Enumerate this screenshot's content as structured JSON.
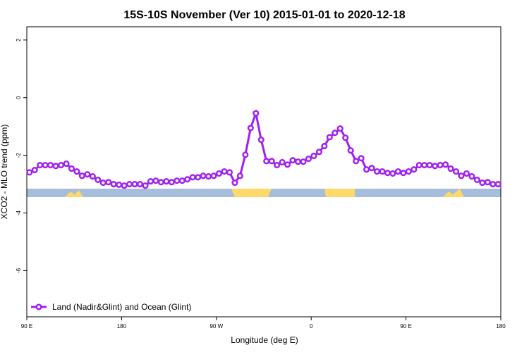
{
  "chart_data": {
    "type": "line",
    "title": "15S-10S November (Ver 10)   2015-01-01 to 2020-12-18",
    "x_label": "Longitude (deg E)",
    "y_label": "XCO2 - MLO trend (ppm)",
    "x": [
      92.5,
      97.5,
      102.5,
      107.5,
      112.5,
      117.5,
      122.5,
      127.5,
      132.5,
      137.5,
      142.5,
      147.5,
      152.5,
      157.5,
      162.5,
      167.5,
      172.5,
      177.5,
      182.5,
      187.5,
      192.5,
      197.5,
      202.5,
      207.5,
      212.5,
      217.5,
      222.5,
      227.5,
      232.5,
      237.5,
      242.5,
      247.5,
      252.5,
      257.5,
      262.5,
      267.5,
      272.5,
      277.5,
      282.5,
      287.5,
      292.5,
      297.5,
      302.5,
      307.5,
      312.5,
      317.5,
      322.5,
      327.5,
      332.5,
      337.5,
      342.5,
      347.5,
      352.5,
      357.5,
      362.5,
      367.5,
      372.5,
      377.5,
      382.5,
      387.5,
      392.5,
      397.5,
      402.5,
      407.5,
      412.5,
      417.5,
      422.5,
      427.5,
      432.5,
      437.5,
      442.5,
      447.5,
      452.5,
      457.5,
      462.5,
      467.5,
      472.5,
      477.5,
      482.5,
      487.5,
      492.5,
      497.5,
      502.5,
      507.5,
      512.5,
      517.5,
      522.5,
      527.5,
      532.5,
      537.5
    ],
    "series": [
      {
        "name": "Land (Nadir&Glint) and Ocean (Glint)",
        "color": "#a020f0",
        "values": [
          -2.59,
          -2.51,
          -2.34,
          -2.34,
          -2.34,
          -2.37,
          -2.34,
          -2.29,
          -2.46,
          -2.56,
          -2.71,
          -2.66,
          -2.73,
          -2.85,
          -2.95,
          -2.93,
          -3.0,
          -3.02,
          -3.05,
          -3.0,
          -3.0,
          -3.0,
          -3.05,
          -2.9,
          -2.88,
          -2.93,
          -2.9,
          -2.93,
          -2.88,
          -2.88,
          -2.83,
          -2.76,
          -2.76,
          -2.71,
          -2.73,
          -2.71,
          -2.63,
          -2.56,
          -2.59,
          -2.95,
          -2.71,
          -1.98,
          -1.05,
          -0.54,
          -1.46,
          -2.2,
          -2.2,
          -2.34,
          -2.24,
          -2.32,
          -2.17,
          -2.22,
          -2.22,
          -2.12,
          -2.02,
          -1.88,
          -1.68,
          -1.37,
          -1.22,
          -1.07,
          -1.39,
          -1.83,
          -2.2,
          -2.1,
          -2.49,
          -2.44,
          -2.56,
          -2.56,
          -2.61,
          -2.63,
          -2.56,
          -2.61,
          -2.56,
          -2.49,
          -2.34,
          -2.34,
          -2.34,
          -2.37,
          -2.34,
          -2.32,
          -2.46,
          -2.56,
          -2.71,
          -2.63,
          -2.73,
          -2.85,
          -2.95,
          -2.93,
          -3.0,
          -3.0
        ]
      }
    ],
    "xlim": [
      90,
      540
    ],
    "xticks": [
      {
        "value": 90,
        "label": "90 E"
      },
      180,
      {
        "value": 270,
        "label": "90 W"
      },
      {
        "value": 360,
        "label": "0"
      },
      {
        "value": 450,
        "label": "90 E"
      },
      {
        "value": 540,
        "label": "180"
      }
    ],
    "ylim": [
      -7.6,
      2.46
    ],
    "yticks": [
      -6,
      -4,
      -2,
      0,
      2
    ],
    "legend": "bottom-left"
  }
}
